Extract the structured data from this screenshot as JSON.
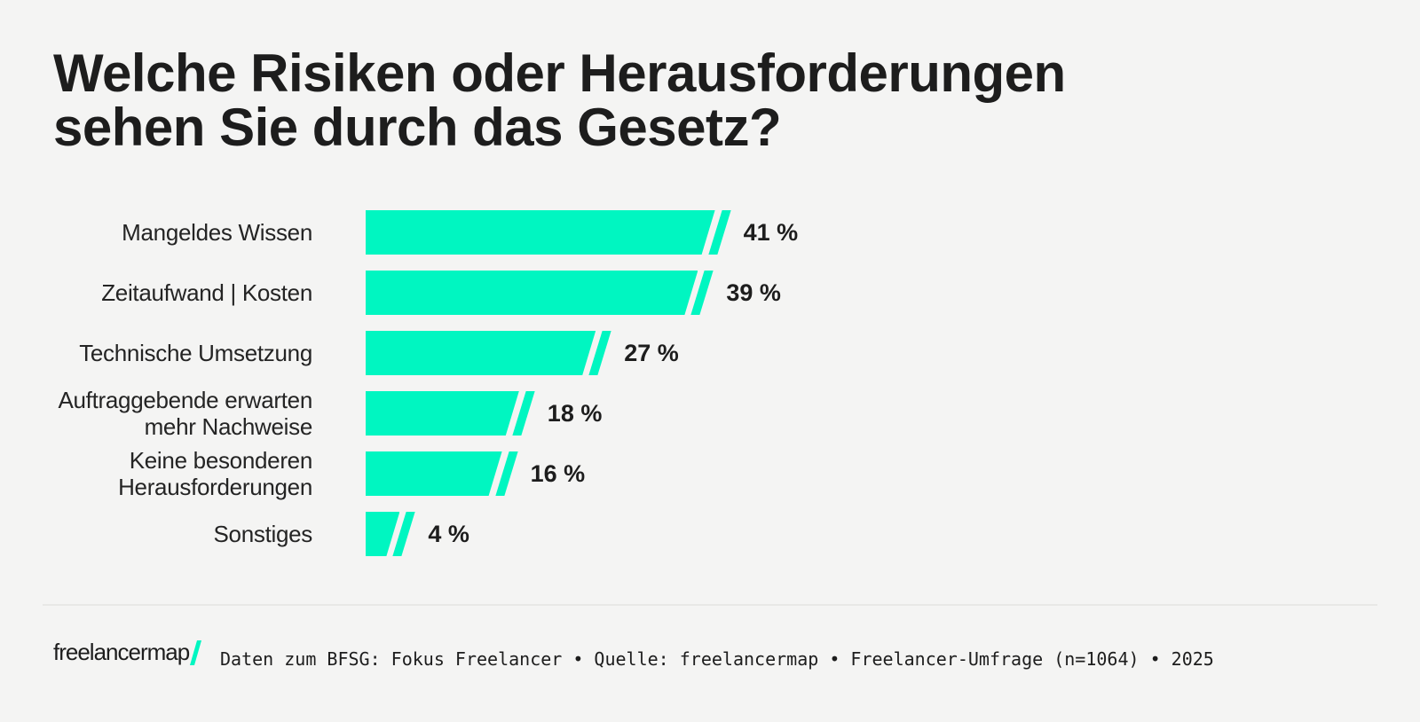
{
  "page": {
    "background": "#f4f4f3",
    "accent": "#00f6c1",
    "text_color": "#1d1d1d"
  },
  "title_lines": [
    "Welche Risiken oder Herausforderungen",
    "sehen Sie durch das Gesetz?"
  ],
  "rows": [
    {
      "lines": [
        "Mangeldes Wissen"
      ],
      "value": 41,
      "value_label": "41 %"
    },
    {
      "lines": [
        "Zeitaufwand | Kosten"
      ],
      "value": 39,
      "value_label": "39 %"
    },
    {
      "lines": [
        "Technische Umsetzung"
      ],
      "value": 27,
      "value_label": "27 %"
    },
    {
      "lines": [
        "Auftraggebende erwarten",
        "mehr Nachweise"
      ],
      "value": 18,
      "value_label": "18 %"
    },
    {
      "lines": [
        "Keine besonderen",
        "Herausforderungen"
      ],
      "value": 16,
      "value_label": "16 %"
    },
    {
      "lines": [
        "Sonstiges"
      ],
      "value": 4,
      "value_label": "4 %"
    }
  ],
  "footer": {
    "logo_text": "freelancermap",
    "source_line": "Daten zum BFSG: Fokus Freelancer • Quelle: freelancermap • Freelancer-Umfrage (n=1064) • 2025"
  },
  "chart_data": {
    "type": "bar",
    "orientation": "horizontal",
    "title": "Welche Risiken oder Herausforderungen sehen Sie durch das Gesetz?",
    "categories": [
      "Mangeldes Wissen",
      "Zeitaufwand | Kosten",
      "Technische Umsetzung",
      "Auftraggebende erwarten mehr Nachweise",
      "Keine besonderen Herausforderungen",
      "Sonstiges"
    ],
    "values": [
      41,
      39,
      27,
      18,
      16,
      4
    ],
    "value_suffix": "%",
    "xlim": [
      0,
      45
    ],
    "grid": false,
    "legend": false,
    "bar_color": "#00f6c1"
  }
}
